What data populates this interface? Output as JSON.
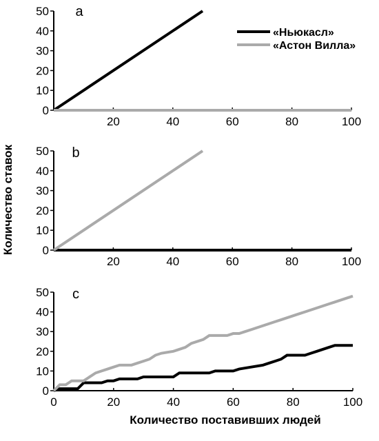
{
  "chart_data": [
    {
      "type": "line",
      "panel_label": "a",
      "xlim": [
        0,
        100
      ],
      "ylim": [
        0,
        50
      ],
      "x_ticks": [
        20,
        40,
        60,
        80,
        100
      ],
      "y_ticks": [
        0,
        10,
        20,
        30,
        40,
        50
      ],
      "legend": {
        "placement": "top-right"
      },
      "series": [
        {
          "name": "«Ньюкасл»",
          "color": "#000000",
          "x": [
            0,
            50
          ],
          "y": [
            0,
            50
          ]
        },
        {
          "name": "«Астон Вилла»",
          "color": "#aaaaaa",
          "x": [
            0,
            100
          ],
          "y": [
            0,
            0
          ]
        }
      ]
    },
    {
      "type": "line",
      "panel_label": "b",
      "xlim": [
        0,
        100
      ],
      "ylim": [
        0,
        50
      ],
      "x_ticks": [
        20,
        40,
        60,
        80,
        100
      ],
      "y_ticks": [
        0,
        10,
        20,
        30,
        40,
        50
      ],
      "series": [
        {
          "color": "#000000",
          "x": [
            0,
            100
          ],
          "y": [
            0,
            0
          ]
        },
        {
          "color": "#aaaaaa",
          "x": [
            0,
            50
          ],
          "y": [
            0,
            50
          ]
        }
      ]
    },
    {
      "type": "line",
      "panel_label": "c",
      "xlim": [
        0,
        100
      ],
      "ylim": [
        0,
        50
      ],
      "x_ticks": [
        0,
        20,
        40,
        60,
        80,
        100
      ],
      "y_ticks": [
        0,
        10,
        20,
        30,
        40,
        50
      ],
      "series": [
        {
          "color": "#000000",
          "x": [
            0,
            2,
            8,
            10,
            16,
            18,
            20,
            22,
            28,
            30,
            40,
            42,
            52,
            54,
            60,
            62,
            66,
            70,
            72,
            74,
            76,
            78,
            84,
            86,
            88,
            90,
            92,
            94,
            100
          ],
          "y": [
            0,
            1,
            1,
            4,
            4,
            5,
            5,
            6,
            6,
            7,
            7,
            9,
            9,
            10,
            10,
            11,
            12,
            13,
            14,
            15,
            16,
            18,
            18,
            19,
            20,
            21,
            22,
            23,
            23
          ]
        },
        {
          "color": "#aaaaaa",
          "x": [
            0,
            2,
            4,
            6,
            10,
            12,
            14,
            16,
            18,
            20,
            22,
            26,
            28,
            30,
            32,
            34,
            36,
            40,
            42,
            44,
            46,
            50,
            52,
            58,
            60,
            62,
            64,
            66,
            68,
            70,
            72,
            74,
            76,
            78,
            80,
            82,
            84,
            86,
            88,
            90,
            92,
            94,
            96,
            98,
            100
          ],
          "y": [
            0,
            3,
            3,
            5,
            5,
            7,
            9,
            10,
            11,
            12,
            13,
            13,
            14,
            15,
            16,
            18,
            19,
            20,
            21,
            22,
            24,
            26,
            28,
            28,
            29,
            29,
            30,
            31,
            32,
            33,
            34,
            35,
            36,
            37,
            38,
            39,
            40,
            41,
            42,
            43,
            44,
            45,
            46,
            47,
            48
          ]
        }
      ]
    }
  ],
  "labels": {
    "y_axis_title": "Количество ставок",
    "x_axis_title": "Количество поставивших людей"
  }
}
